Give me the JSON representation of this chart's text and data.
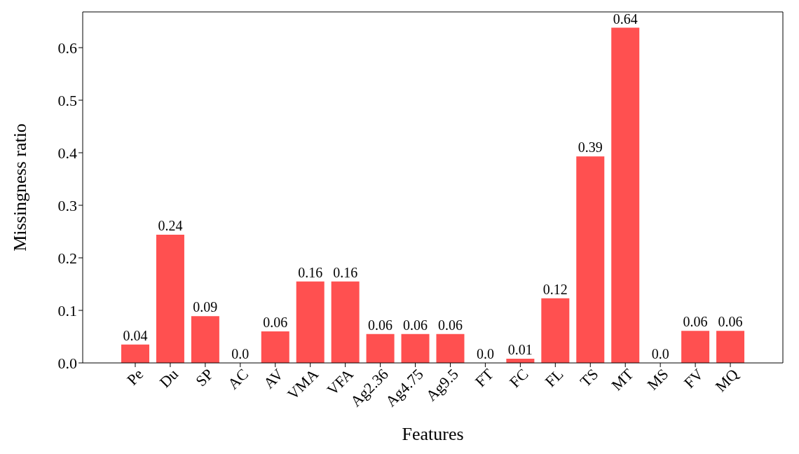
{
  "chart_data": {
    "type": "bar",
    "xlabel": "Features",
    "ylabel": "Missingness ratio",
    "categories": [
      "Pe",
      "Du",
      "SP",
      "AC",
      "AV",
      "VMA",
      "VFA",
      "Ag2.36",
      "Ag4.75",
      "Ag9.5",
      "FT",
      "FC",
      "FL",
      "TS",
      "MT",
      "MS",
      "FV",
      "MQ"
    ],
    "values": [
      0.035,
      0.244,
      0.089,
      0,
      0.06,
      0.155,
      0.155,
      0.055,
      0.055,
      0.055,
      0,
      0.008,
      0.123,
      0.393,
      0.638,
      0,
      0.061,
      0.061
    ],
    "value_labels": [
      "0.04",
      "0.24",
      "0.09",
      "0.0",
      "0.06",
      "0.16",
      "0.16",
      "0.06",
      "0.06",
      "0.06",
      "0.0",
      "0.01",
      "0.12",
      "0.39",
      "0.64",
      "0.0",
      "0.06",
      "0.06"
    ],
    "color": "#ff5050",
    "ylim": [
      0,
      0.668
    ],
    "yticks": [
      {
        "value": 0,
        "label": "0.0"
      },
      0.1,
      0.2,
      0.3,
      0.4,
      0.5,
      0.6
    ],
    "grid": false,
    "legend": false
  }
}
